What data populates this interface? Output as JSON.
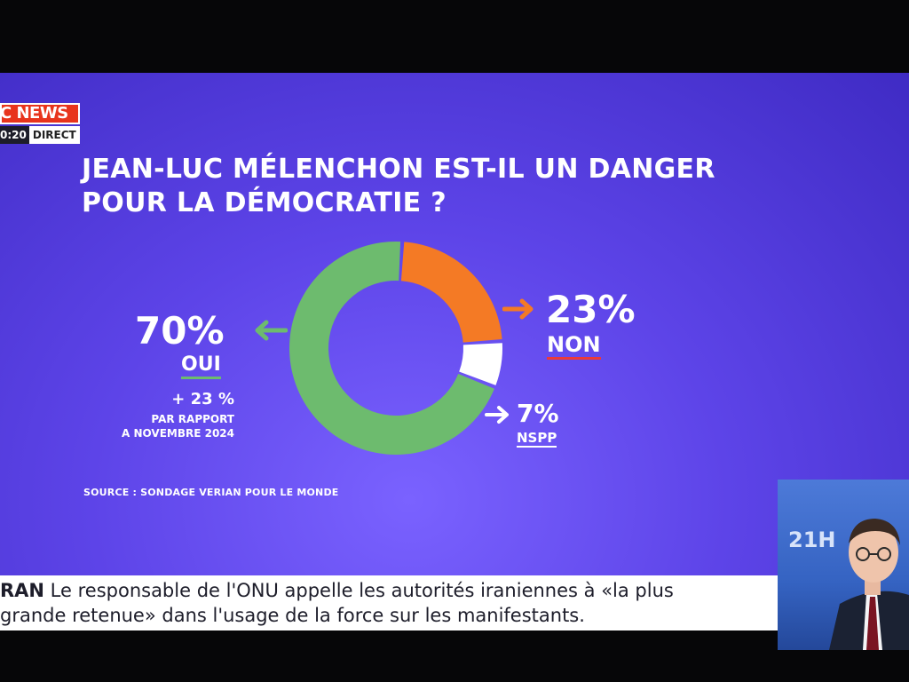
{
  "channel": {
    "logo_text": "C NEWS",
    "time": "0:20",
    "live_label": "DIRECT"
  },
  "chart_data": {
    "type": "pie",
    "title_lines": [
      "JEAN-LUC MÉLENCHON EST-IL UN DANGER",
      "POUR LA DÉMOCRATIE ?"
    ],
    "slices": [
      {
        "label": "OUI",
        "value": 70,
        "display": "70%",
        "color": "#6dbb6e"
      },
      {
        "label": "NON",
        "value": 23,
        "display": "23%",
        "color": "#f47a25"
      },
      {
        "label": "NSPP",
        "value": 7,
        "display": "7%",
        "color": "#ffffff"
      }
    ],
    "annotation": {
      "change": "+ 23 %",
      "line1": "PAR RAPPORT",
      "line2": "A NOVEMBRE 2024"
    },
    "source": "SOURCE : SONDAGE VERIAN POUR LE MONDE"
  },
  "colors": {
    "background": "#5d44e8",
    "oui": "#6dbb6e",
    "non": "#f47a25",
    "nspp": "#ffffff",
    "non_underline": "#ea3a3a"
  },
  "ticker": {
    "tag": "RAN",
    "line1": " Le responsable de l'ONU appelle les autorités iraniennes à «la plus",
    "line2": "grande retenue» dans l'usage de la force sur les manifestants."
  },
  "inset": {
    "label": "21H"
  }
}
